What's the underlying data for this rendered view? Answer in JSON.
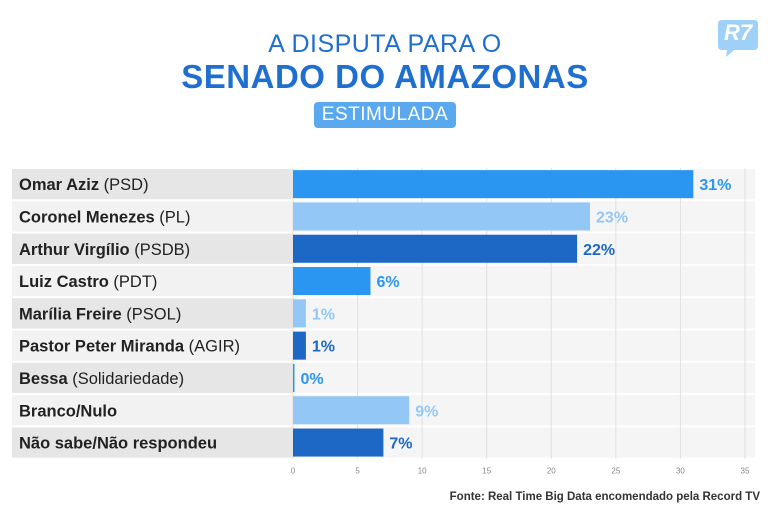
{
  "header": {
    "title_line1": "A DISPUTA PARA O",
    "title_line2": "SENADO DO AMAZONAS",
    "badge": "ESTIMULADA",
    "logo": "R7"
  },
  "chart_data": {
    "type": "bar",
    "orientation": "horizontal",
    "categories": [
      {
        "name": "Omar Aziz",
        "party": "(PSD)"
      },
      {
        "name": "Coronel Menezes",
        "party": "(PL)"
      },
      {
        "name": "Arthur Virgílio",
        "party": "(PSDB)"
      },
      {
        "name": "Luiz Castro",
        "party": "(PDT)"
      },
      {
        "name": "Marília Freire",
        "party": "(PSOL)"
      },
      {
        "name": "Pastor Peter Miranda",
        "party": "(AGIR)"
      },
      {
        "name": "Bessa",
        "party": "(Solidariedade)"
      },
      {
        "name": "Branco/Nulo",
        "party": ""
      },
      {
        "name": "Não sabe/Não respondeu",
        "party": ""
      }
    ],
    "values": [
      31,
      23,
      22,
      6,
      1,
      1,
      0,
      9,
      7
    ],
    "value_labels": [
      "31%",
      "23%",
      "22%",
      "6%",
      "1%",
      "1%",
      "0%",
      "9%",
      "7%"
    ],
    "bar_colors": [
      "#2a96f1",
      "#93c8f6",
      "#1d68c4",
      "#2a96f1",
      "#93c8f6",
      "#1d68c4",
      "#2a96f1",
      "#93c8f6",
      "#1d68c4"
    ],
    "xlim": [
      0,
      35
    ],
    "xticks": [
      "0",
      "5",
      "10",
      "15",
      "20",
      "25",
      "30",
      "35"
    ],
    "grid": true
  },
  "footer": {
    "source": "Fonte: Real Time Big Data encomendado pela Record TV"
  }
}
